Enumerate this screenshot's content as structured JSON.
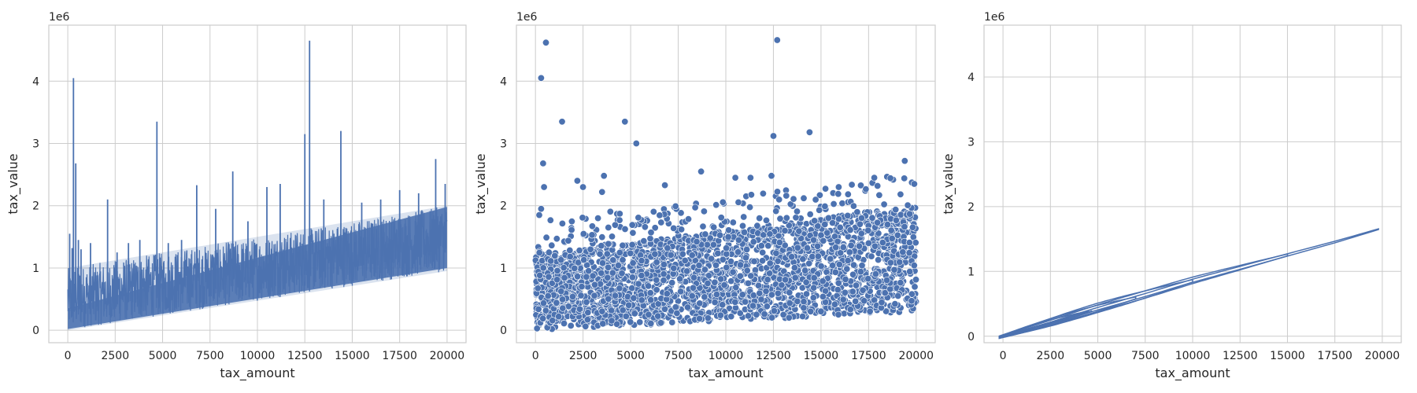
{
  "style": {
    "series_color": "#4c72b0",
    "grid_color": "#cccccc",
    "spine_color": "#cccccc",
    "background": "#ffffff",
    "grid": true
  },
  "chart_data": [
    {
      "type": "line",
      "xlabel": "tax_amount",
      "ylabel": "tax_value",
      "y_offset_label": "1e6",
      "xlim": [
        -1000,
        21000
      ],
      "ylim": [
        -0.2,
        4.9
      ],
      "xticks": [
        0,
        2500,
        5000,
        7500,
        10000,
        12500,
        15000,
        17500,
        20000
      ],
      "yticks": [
        0,
        1,
        2,
        3,
        4
      ],
      "y_unit": "1e6",
      "trend": {
        "x": [
          0,
          20000
        ],
        "y_low": [
          0.0,
          0.95
        ],
        "y_high": [
          1.0,
          2.0
        ]
      },
      "peaks": [
        {
          "x": 100,
          "y": 1.55
        },
        {
          "x": 230,
          "y": 1.32
        },
        {
          "x": 300,
          "y": 4.05
        },
        {
          "x": 420,
          "y": 2.68
        },
        {
          "x": 560,
          "y": 1.45
        },
        {
          "x": 700,
          "y": 1.3
        },
        {
          "x": 1200,
          "y": 1.4
        },
        {
          "x": 2100,
          "y": 2.1
        },
        {
          "x": 2600,
          "y": 1.25
        },
        {
          "x": 3200,
          "y": 1.4
        },
        {
          "x": 3800,
          "y": 1.45
        },
        {
          "x": 4700,
          "y": 3.35
        },
        {
          "x": 5300,
          "y": 1.4
        },
        {
          "x": 6000,
          "y": 1.45
        },
        {
          "x": 6800,
          "y": 2.33
        },
        {
          "x": 7800,
          "y": 1.95
        },
        {
          "x": 8700,
          "y": 2.55
        },
        {
          "x": 9500,
          "y": 1.75
        },
        {
          "x": 10500,
          "y": 2.3
        },
        {
          "x": 11200,
          "y": 2.35
        },
        {
          "x": 12500,
          "y": 3.15
        },
        {
          "x": 12750,
          "y": 4.65
        },
        {
          "x": 13500,
          "y": 2.1
        },
        {
          "x": 14400,
          "y": 3.2
        },
        {
          "x": 15500,
          "y": 2.05
        },
        {
          "x": 16500,
          "y": 2.1
        },
        {
          "x": 17500,
          "y": 2.25
        },
        {
          "x": 18500,
          "y": 2.2
        },
        {
          "x": 19400,
          "y": 2.75
        },
        {
          "x": 19900,
          "y": 2.35
        }
      ]
    },
    {
      "type": "scatter",
      "xlabel": "tax_amount",
      "ylabel": "tax_value",
      "y_offset_label": "1e6",
      "xlim": [
        -1000,
        21000
      ],
      "ylim": [
        -0.2,
        4.9
      ],
      "xticks": [
        0,
        2500,
        5000,
        7500,
        10000,
        12500,
        15000,
        17500,
        20000
      ],
      "yticks": [
        0,
        1,
        2,
        3,
        4
      ],
      "y_unit": "1e6",
      "outliers": [
        {
          "x": 300,
          "y": 4.05
        },
        {
          "x": 550,
          "y": 4.62
        },
        {
          "x": 400,
          "y": 2.68
        },
        {
          "x": 450,
          "y": 2.3
        },
        {
          "x": 1400,
          "y": 3.35
        },
        {
          "x": 4700,
          "y": 3.35
        },
        {
          "x": 5300,
          "y": 3.0
        },
        {
          "x": 12700,
          "y": 4.66
        },
        {
          "x": 12500,
          "y": 3.12
        },
        {
          "x": 14400,
          "y": 3.18
        },
        {
          "x": 19400,
          "y": 2.72
        },
        {
          "x": 8700,
          "y": 2.55
        },
        {
          "x": 3600,
          "y": 2.48
        },
        {
          "x": 2200,
          "y": 2.4
        },
        {
          "x": 10500,
          "y": 2.45
        },
        {
          "x": 11300,
          "y": 2.45
        },
        {
          "x": 17800,
          "y": 2.45
        },
        {
          "x": 19900,
          "y": 2.35
        },
        {
          "x": 6800,
          "y": 2.33
        },
        {
          "x": 12400,
          "y": 2.48
        },
        {
          "x": 300,
          "y": 1.95
        },
        {
          "x": 200,
          "y": 1.85
        },
        {
          "x": 3500,
          "y": 2.22
        },
        {
          "x": 2500,
          "y": 2.3
        }
      ],
      "cloud": {
        "x": [
          0,
          20000
        ],
        "y_low": [
          0.0,
          0.3
        ],
        "y_high": [
          1.2,
          2.0
        ]
      }
    },
    {
      "type": "kde",
      "xlabel": "tax_amount",
      "ylabel": "tax_value",
      "y_offset_label": "1e6",
      "xlim": [
        -1000,
        21000
      ],
      "ylim": [
        -0.1,
        4.8
      ],
      "xticks": [
        0,
        2500,
        5000,
        7500,
        10000,
        12500,
        15000,
        17500,
        20000
      ],
      "yticks": [
        0,
        1,
        2,
        3,
        4
      ],
      "y_unit": "1e6",
      "ridge": [
        {
          "x": -200,
          "y": -0.02
        },
        {
          "x": 2500,
          "y": 0.2
        },
        {
          "x": 5000,
          "y": 0.42
        },
        {
          "x": 7500,
          "y": 0.63
        },
        {
          "x": 10000,
          "y": 0.85
        },
        {
          "x": 12500,
          "y": 1.05
        },
        {
          "x": 15000,
          "y": 1.25
        },
        {
          "x": 17500,
          "y": 1.45
        },
        {
          "x": 19800,
          "y": 1.65
        }
      ],
      "contours": [
        {
          "x_end": 19800,
          "half_width": 0.03
        },
        {
          "x_end": 15000,
          "half_width": 0.07
        },
        {
          "x_end": 10000,
          "half_width": 0.09
        },
        {
          "x_end": 7000,
          "half_width": 0.07
        },
        {
          "x_end": 4500,
          "half_width": 0.05
        }
      ]
    }
  ]
}
